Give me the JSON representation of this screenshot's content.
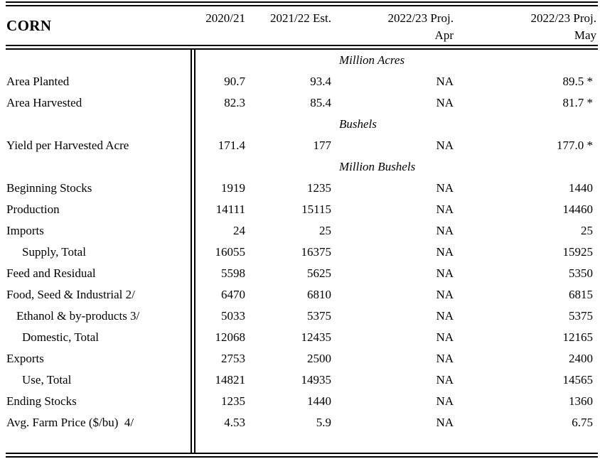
{
  "table": {
    "commodity": "CORN",
    "columns": [
      {
        "label": "2020/21",
        "sublabel": ""
      },
      {
        "label": "2021/22 Est.",
        "sublabel": ""
      },
      {
        "label": "2022/23 Proj.",
        "sublabel": "Apr"
      },
      {
        "label": "2022/23 Proj.",
        "sublabel": "May"
      }
    ],
    "rows": [
      {
        "type": "unit",
        "label": "Million Acres"
      },
      {
        "type": "data",
        "label": "Area Planted",
        "indent": 0,
        "values": [
          "90.7",
          "93.4",
          "NA",
          "89.5 *"
        ]
      },
      {
        "type": "data",
        "label": "Area Harvested",
        "indent": 0,
        "values": [
          "82.3",
          "85.4",
          "NA",
          "81.7 *"
        ]
      },
      {
        "type": "unit",
        "label": "Bushels"
      },
      {
        "type": "data",
        "label": "Yield per Harvested Acre",
        "indent": 0,
        "values": [
          "171.4",
          "177",
          "NA",
          "177.0 *"
        ]
      },
      {
        "type": "unit",
        "label": "Million Bushels"
      },
      {
        "type": "data",
        "label": "Beginning Stocks",
        "indent": 0,
        "values": [
          "1919",
          "1235",
          "NA",
          "1440"
        ]
      },
      {
        "type": "data",
        "label": "Production",
        "indent": 0,
        "values": [
          "14111",
          "15115",
          "NA",
          "14460"
        ]
      },
      {
        "type": "data",
        "label": "Imports",
        "indent": 0,
        "values": [
          "24",
          "25",
          "NA",
          "25"
        ]
      },
      {
        "type": "data",
        "label": "Supply, Total",
        "indent": 2,
        "values": [
          "16055",
          "16375",
          "NA",
          "15925"
        ]
      },
      {
        "type": "data",
        "label": "Feed and Residual",
        "indent": 0,
        "values": [
          "5598",
          "5625",
          "NA",
          "5350"
        ]
      },
      {
        "type": "data",
        "label": "Food, Seed & Industrial 2/",
        "indent": 0,
        "values": [
          "6470",
          "6810",
          "NA",
          "6815"
        ]
      },
      {
        "type": "data",
        "label": "Ethanol & by-products 3/",
        "indent": 1,
        "values": [
          "5033",
          "5375",
          "NA",
          "5375"
        ]
      },
      {
        "type": "data",
        "label": "Domestic, Total",
        "indent": 2,
        "values": [
          "12068",
          "12435",
          "NA",
          "12165"
        ]
      },
      {
        "type": "data",
        "label": "Exports",
        "indent": 0,
        "values": [
          "2753",
          "2500",
          "NA",
          "2400"
        ]
      },
      {
        "type": "data",
        "label": "Use, Total",
        "indent": 2,
        "values": [
          "14821",
          "14935",
          "NA",
          "14565"
        ]
      },
      {
        "type": "data",
        "label": "Ending Stocks",
        "indent": 0,
        "values": [
          "1235",
          "1440",
          "NA",
          "1360"
        ]
      },
      {
        "type": "data",
        "label": "Avg. Farm Price ($/bu)  4/",
        "indent": 0,
        "values": [
          "4.53",
          "5.9",
          "NA",
          "6.75"
        ]
      }
    ],
    "colors": {
      "text": "#000000",
      "background": "#ffffff",
      "rule": "#000000"
    }
  }
}
